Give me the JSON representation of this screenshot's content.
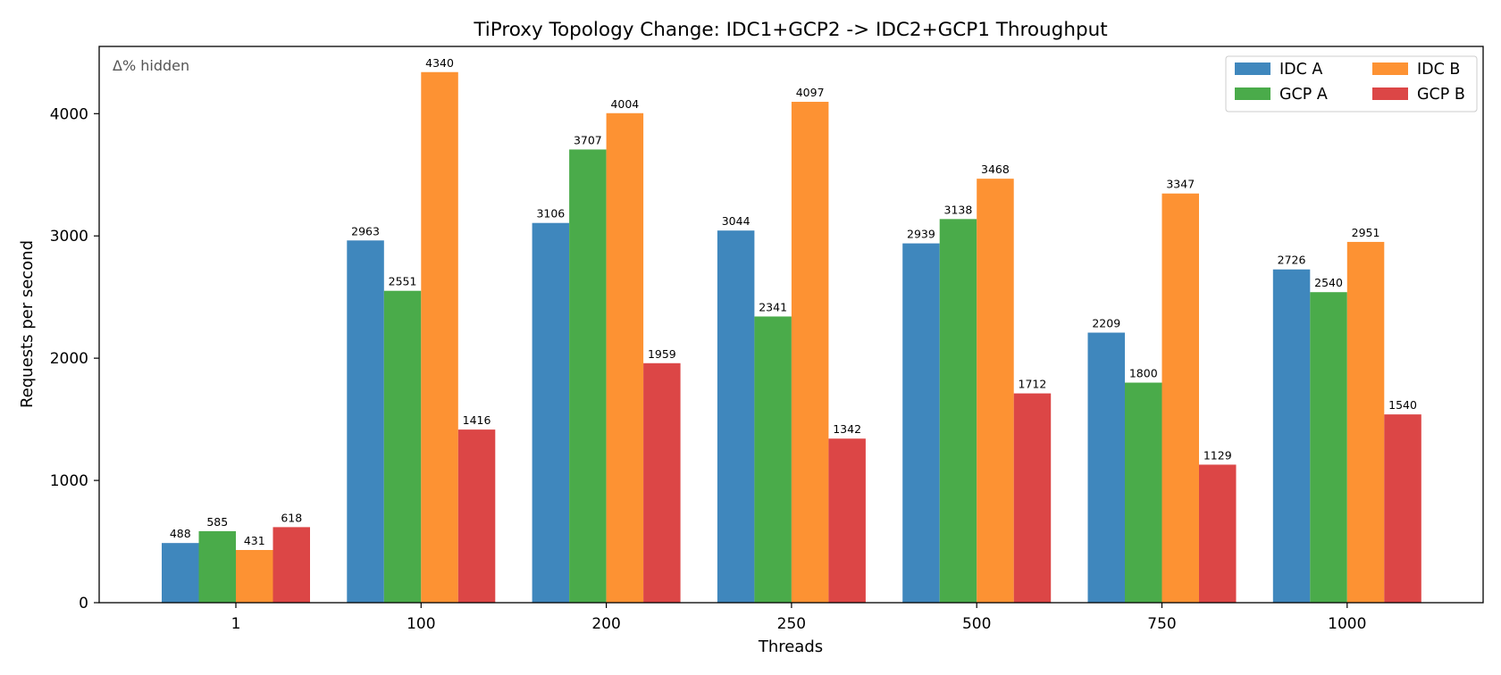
{
  "chart_data": {
    "type": "bar",
    "title": "TiProxy Topology Change: IDC1+GCP2 -> IDC2+GCP1 Throughput",
    "xlabel": "Threads",
    "ylabel": "Requests per second",
    "note": "Δ% hidden",
    "categories": [
      "1",
      "100",
      "200",
      "250",
      "500",
      "750",
      "1000"
    ],
    "ylim": [
      0,
      4550
    ],
    "yticks": [
      0,
      1000,
      2000,
      3000,
      4000
    ],
    "grid": false,
    "legend_position": "top-right",
    "series": [
      {
        "name": "IDC A",
        "color": "#3f87bd",
        "values": [
          488,
          2963,
          3106,
          3044,
          2939,
          2209,
          2726
        ]
      },
      {
        "name": "GCP A",
        "color": "#4aab4a",
        "values": [
          585,
          2551,
          3707,
          2341,
          3138,
          1800,
          2540
        ]
      },
      {
        "name": "IDC B",
        "color": "#fd9233",
        "values": [
          431,
          4340,
          4004,
          4097,
          3468,
          3347,
          2951
        ]
      },
      {
        "name": "GCP B",
        "color": "#dc4646",
        "values": [
          618,
          1416,
          1959,
          1342,
          1712,
          1129,
          1540
        ]
      }
    ]
  }
}
